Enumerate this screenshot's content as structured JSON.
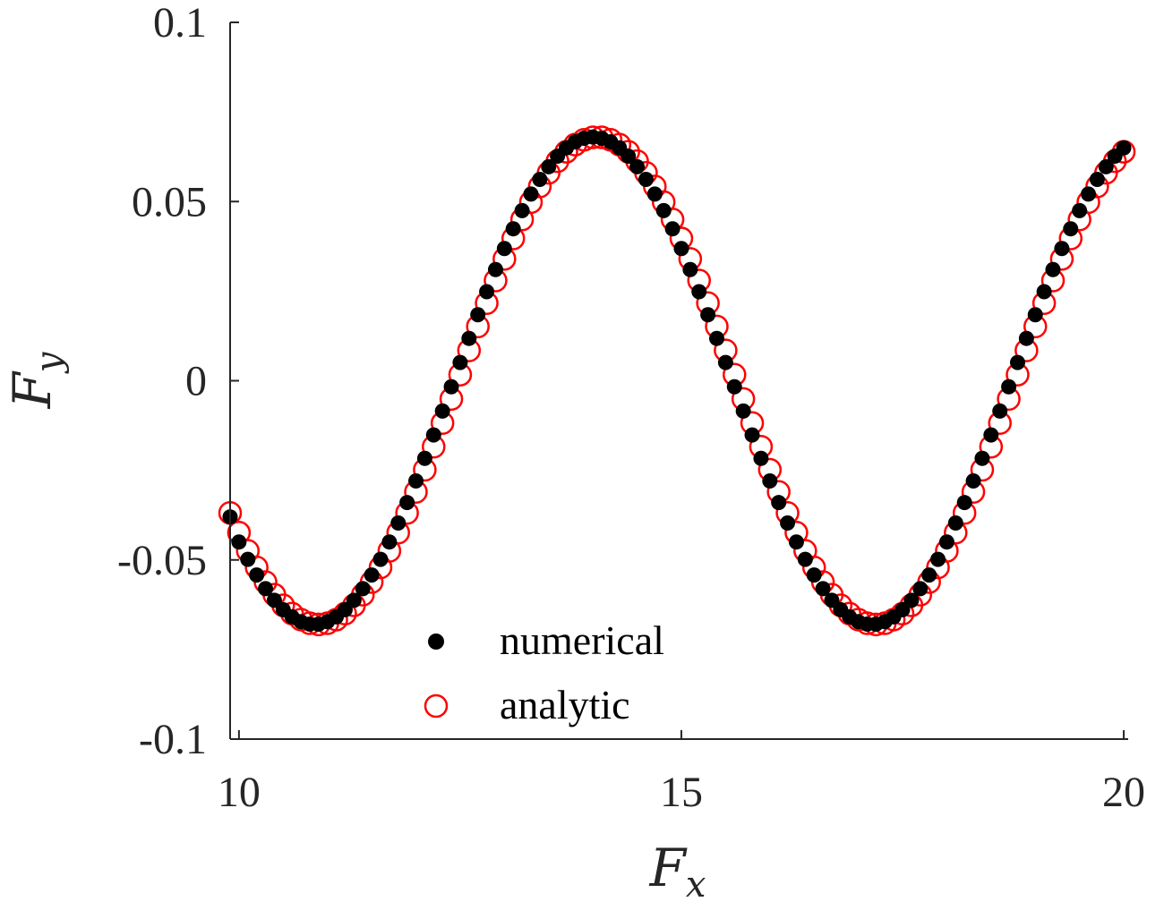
{
  "chart_data": {
    "type": "scatter",
    "title": "",
    "xlabel": "F",
    "xlabel_sub": "x",
    "ylabel": "F",
    "ylabel_sub": "y",
    "xlim": [
      9.9,
      20.05
    ],
    "ylim": [
      -0.1,
      0.1
    ],
    "xticks": [
      10,
      15,
      20
    ],
    "xtick_labels": [
      "10",
      "15",
      "20"
    ],
    "yticks": [
      -0.1,
      -0.05,
      0,
      0.05,
      0.1
    ],
    "ytick_labels": [
      "-0.1",
      "-0.05",
      "0",
      "0.05",
      "0.1"
    ],
    "grid": false,
    "legend_position": "bottom-center",
    "series": [
      {
        "name": "numerical",
        "marker": "filled-circle",
        "color": "#000000",
        "model": {
          "amplitude": 0.068,
          "period": 6.3,
          "x_min": 14.0,
          "x_start": 9.9,
          "x_end": 20.0,
          "step": 0.1,
          "first_y": -0.038
        }
      },
      {
        "name": "analytic",
        "marker": "open-circle",
        "color": "#ff0000",
        "model": {
          "amplitude": 0.068,
          "period": 6.3,
          "x_min": 14.05,
          "x_start": 9.9,
          "x_end": 20.0,
          "step": 0.1
        }
      }
    ]
  }
}
